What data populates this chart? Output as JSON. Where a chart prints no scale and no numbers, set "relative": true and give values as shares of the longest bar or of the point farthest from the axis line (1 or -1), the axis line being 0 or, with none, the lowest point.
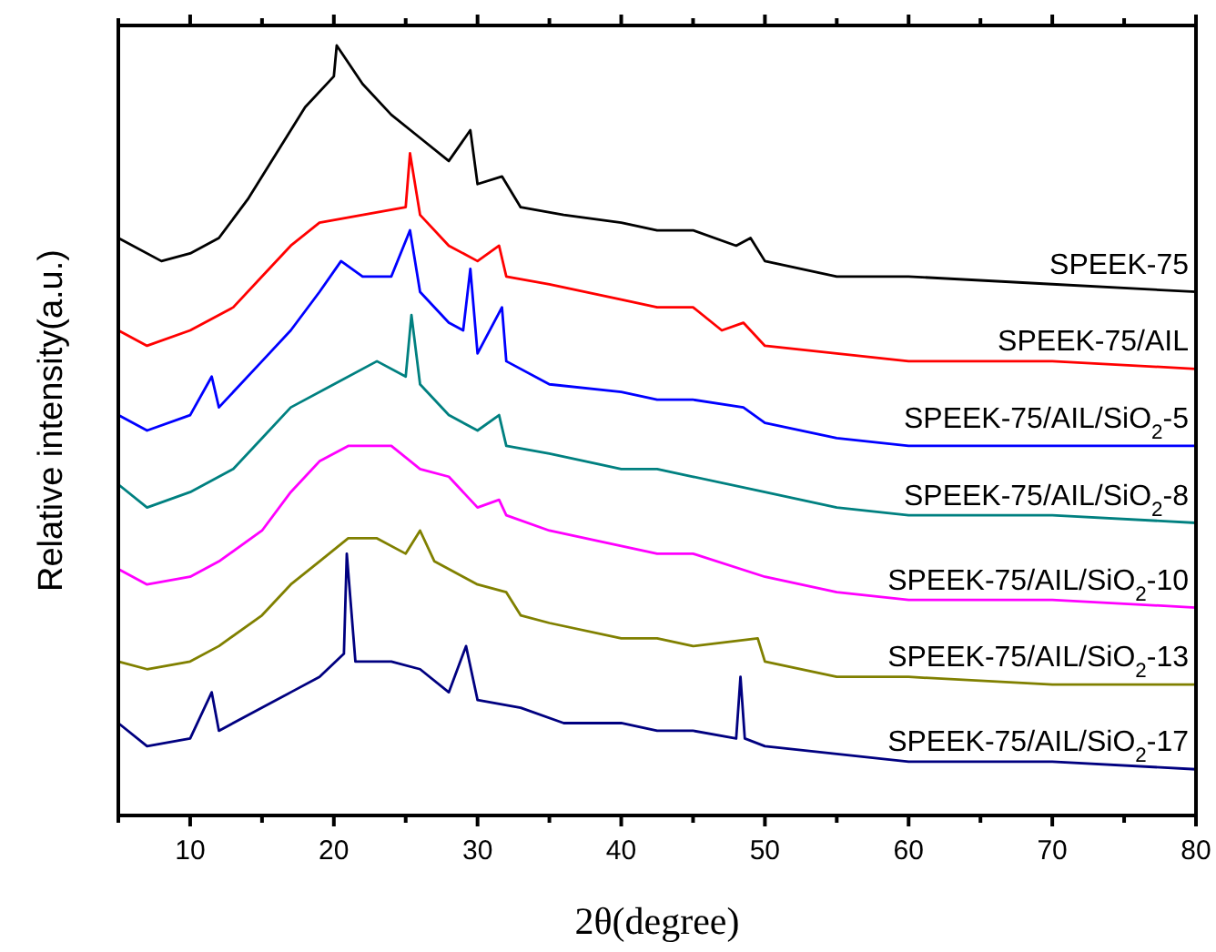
{
  "chart_data": {
    "type": "line",
    "relative": true,
    "xlabel": "2θ(degree)",
    "ylabel": "Relative intensity(a.u.)",
    "xlim": [
      5,
      80
    ],
    "xticks": [
      {
        "value": 5,
        "label": null
      },
      10,
      {
        "value": 15,
        "label": null
      },
      20,
      {
        "value": 25,
        "label": null
      },
      30,
      {
        "value": 35,
        "label": null
      },
      40,
      {
        "value": 45,
        "label": null
      },
      50,
      {
        "value": 55,
        "label": null
      },
      60,
      {
        "value": 65,
        "label": null
      },
      70,
      {
        "value": 75,
        "label": null
      },
      80
    ],
    "grid": false,
    "line_style": "solid",
    "series": [
      {
        "name": "SPEEK-75",
        "color": "#000000",
        "x": [
          5,
          8,
          10,
          12,
          14,
          16,
          18,
          20,
          20.2,
          22,
          24,
          26,
          28,
          29.5,
          30,
          31.7,
          33,
          36,
          40,
          42.5,
          45,
          48,
          49,
          50,
          55,
          60,
          70,
          80
        ],
        "values": [
          0.75,
          0.72,
          0.73,
          0.75,
          0.8,
          0.86,
          0.92,
          0.96,
          1,
          0.95,
          0.91,
          0.88,
          0.85,
          0.89,
          0.82,
          0.83,
          0.79,
          0.78,
          0.77,
          0.76,
          0.76,
          0.74,
          0.75,
          0.72,
          0.7,
          0.7,
          0.69,
          0.68
        ]
      },
      {
        "name": "SPEEK-75/AIL",
        "color": "#ff0000",
        "x": [
          5,
          7,
          10,
          13,
          15,
          17,
          19,
          22,
          25,
          25.3,
          26,
          28,
          30,
          31.5,
          32,
          35,
          40,
          42.5,
          45,
          47,
          48.5,
          50,
          55,
          60,
          70,
          80
        ],
        "values": [
          0.63,
          0.61,
          0.63,
          0.66,
          0.7,
          0.74,
          0.77,
          0.78,
          0.79,
          0.86,
          0.78,
          0.74,
          0.72,
          0.74,
          0.7,
          0.69,
          0.67,
          0.66,
          0.66,
          0.63,
          0.64,
          0.61,
          0.6,
          0.59,
          0.59,
          0.58
        ]
      },
      {
        "name": "SPEEK-75/AIL/SiO$_{2}$-5",
        "color": "#0000ff",
        "x": [
          5,
          7,
          10,
          11.5,
          12,
          15,
          17,
          19,
          20.5,
          22,
          24,
          25.3,
          26,
          28,
          29,
          29.5,
          30,
          31.7,
          32,
          35,
          40,
          42.5,
          45,
          48.5,
          50,
          55,
          60,
          70,
          80
        ],
        "values": [
          0.52,
          0.5,
          0.52,
          0.57,
          0.53,
          0.59,
          0.63,
          0.68,
          0.72,
          0.7,
          0.7,
          0.76,
          0.68,
          0.64,
          0.63,
          0.71,
          0.6,
          0.66,
          0.59,
          0.56,
          0.55,
          0.54,
          0.54,
          0.53,
          0.51,
          0.49,
          0.48,
          0.48,
          0.48
        ]
      },
      {
        "name": "SPEEK-75/AIL/SiO$_{2}$-8",
        "color": "#008080",
        "x": [
          5,
          7,
          10,
          13,
          15,
          17,
          20,
          23,
          25,
          25.4,
          26,
          28,
          30,
          31.5,
          32,
          35,
          40,
          42.5,
          45,
          50,
          55,
          60,
          70,
          80
        ],
        "values": [
          0.43,
          0.4,
          0.42,
          0.45,
          0.49,
          0.53,
          0.56,
          0.59,
          0.57,
          0.65,
          0.56,
          0.52,
          0.5,
          0.52,
          0.48,
          0.47,
          0.45,
          0.45,
          0.44,
          0.42,
          0.4,
          0.39,
          0.39,
          0.38
        ]
      },
      {
        "name": "SPEEK-75/AIL/SiO$_{2}$-10",
        "color": "#ff00ff",
        "x": [
          5,
          7,
          10,
          12,
          15,
          17,
          19,
          21,
          24,
          26,
          28,
          30,
          31.5,
          32,
          35,
          40,
          42.5,
          45,
          50,
          55,
          60,
          70,
          80
        ],
        "values": [
          0.32,
          0.3,
          0.31,
          0.33,
          0.37,
          0.42,
          0.46,
          0.48,
          0.48,
          0.45,
          0.44,
          0.4,
          0.41,
          0.39,
          0.37,
          0.35,
          0.34,
          0.34,
          0.31,
          0.29,
          0.28,
          0.28,
          0.27
        ]
      },
      {
        "name": "SPEEK-75/AIL/SiO$_{2}$-13",
        "color": "#808000",
        "x": [
          5,
          7,
          10,
          12,
          15,
          17,
          19,
          21,
          23,
          25,
          26,
          27,
          29,
          30,
          32,
          33,
          35,
          40,
          42.5,
          45,
          49.5,
          50,
          55,
          60,
          70,
          80
        ],
        "values": [
          0.2,
          0.19,
          0.2,
          0.22,
          0.26,
          0.3,
          0.33,
          0.36,
          0.36,
          0.34,
          0.37,
          0.33,
          0.31,
          0.3,
          0.29,
          0.26,
          0.25,
          0.23,
          0.23,
          0.22,
          0.23,
          0.2,
          0.18,
          0.18,
          0.17,
          0.17
        ]
      },
      {
        "name": "SPEEK-75/AIL/SiO$_{2}$-17",
        "color": "#000080",
        "x": [
          5,
          7,
          10,
          11.5,
          12,
          15,
          17,
          19,
          20.7,
          20.9,
          21.5,
          24,
          26,
          28,
          29.2,
          30,
          33,
          36,
          40,
          42.5,
          45,
          48,
          48.3,
          48.6,
          50,
          55,
          60,
          70,
          80
        ],
        "values": [
          0.12,
          0.09,
          0.1,
          0.16,
          0.11,
          0.14,
          0.16,
          0.18,
          0.21,
          0.34,
          0.2,
          0.2,
          0.19,
          0.16,
          0.22,
          0.15,
          0.14,
          0.12,
          0.12,
          0.11,
          0.11,
          0.1,
          0.18,
          0.1,
          0.09,
          0.08,
          0.07,
          0.07,
          0.06
        ]
      }
    ]
  }
}
